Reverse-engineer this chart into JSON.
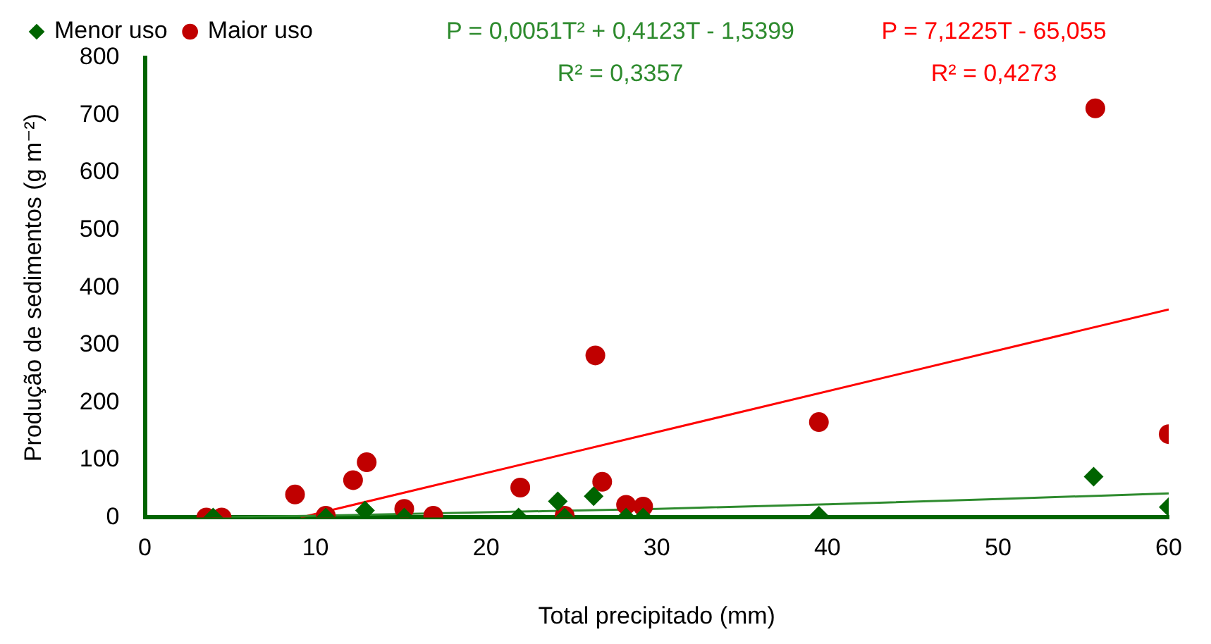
{
  "chart_data": {
    "type": "scatter",
    "xlabel": "Total precipitado (mm)",
    "ylabel": "Produção de sedimentos (g m⁻²)",
    "xlim": [
      0,
      60
    ],
    "xticks": [
      0,
      10,
      20,
      30,
      40,
      50,
      60
    ],
    "ylim": [
      0,
      800
    ],
    "yticks": [
      0,
      100,
      200,
      300,
      400,
      500,
      600,
      700,
      800
    ],
    "grid": false,
    "legend": "top left",
    "annotations": [
      "P = 0,0051T² + 0,4123T - 1,5399",
      "R² = 0,3357",
      "P = 7,1225T - 65,055",
      "R² = 0,4273"
    ],
    "series": [
      {
        "name": "Menor uso",
        "color": "#006400",
        "marker": "diamond",
        "x": [
          4,
          10.6,
          12.9,
          15.2,
          21.9,
          24.2,
          24.6,
          26.3,
          28.2,
          29.2,
          39.5,
          55.6,
          60
        ],
        "values": [
          0,
          0,
          12,
          0,
          0,
          28,
          0,
          37,
          0,
          0,
          3,
          71,
          18
        ]
      },
      {
        "name": "Maior uso",
        "color": "#c00000",
        "marker": "circle",
        "x": [
          3.6,
          4.5,
          8.8,
          10.6,
          12.2,
          13.0,
          15.2,
          16.9,
          22,
          24.6,
          26.4,
          26.8,
          28.2,
          29.2,
          39.5,
          55.7,
          60
        ],
        "values": [
          0,
          0,
          40,
          3,
          65,
          96,
          15,
          3,
          52,
          3,
          282,
          62,
          22,
          19,
          166,
          712,
          145
        ]
      },
      {
        "type": "line",
        "color": "#2e8b2e",
        "marker": "none",
        "x": [
          4,
          10,
          20,
          30,
          40,
          50,
          60
        ],
        "values": [
          0,
          3,
          9,
          15,
          23,
          32,
          42
        ]
      },
      {
        "type": "line",
        "color": "#ff0000",
        "marker": "none",
        "x": [
          9.13,
          60
        ],
        "values": [
          0,
          362
        ]
      }
    ]
  }
}
